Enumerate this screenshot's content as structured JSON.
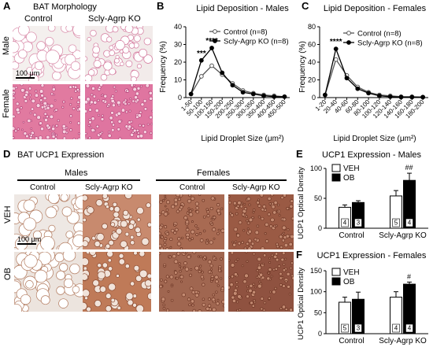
{
  "panels": {
    "A": {
      "letter": "A",
      "title": "BAT Morphology",
      "col_labels": [
        "Control",
        "Scly-Agrp KO"
      ],
      "row_labels": [
        "Male",
        "Female"
      ],
      "scale_bar": "100 μm"
    },
    "D": {
      "letter": "D",
      "title": "BAT UCP1 Expression",
      "group_labels": [
        "Males",
        "Females"
      ],
      "col_labels": [
        "Control",
        "Scly-Agrp KO",
        "Control",
        "Scly-Agrp KO"
      ],
      "row_labels": [
        "VEH",
        "OB"
      ],
      "scale_bar": "100 μm"
    }
  },
  "colors": {
    "control_line": "#555555",
    "ko_line": "#000000",
    "veh_fill": "#ffffff",
    "ob_fill": "#000000",
    "tissue_pink": "#e8a4bc",
    "tissue_brown": "#a0522d"
  },
  "chart_data": [
    {
      "id": "B",
      "letter": "B",
      "type": "line",
      "title": "Lipid Deposition - Males",
      "xlabel": "Lipid Droplet Size (μm²)",
      "ylabel": "Frequency (%)",
      "categories": [
        "1-50",
        "50-100",
        "100-150",
        "150-200",
        "200-250",
        "250-300",
        "300-350",
        "350-400",
        "400-450",
        "450-500"
      ],
      "ylim": [
        0,
        40
      ],
      "yticks": [
        0,
        10,
        20,
        30,
        40
      ],
      "series": [
        {
          "name": "Control (n=8)",
          "values": [
            2,
            12,
            18,
            13,
            8,
            4,
            2.5,
            1.5,
            1,
            0.5
          ]
        },
        {
          "name": "Scly-Agrp KO (n=8)",
          "values": [
            2,
            21,
            28,
            14,
            7,
            3,
            2,
            1,
            0.5,
            0.5
          ]
        }
      ],
      "annotations": [
        {
          "category": "50-100",
          "text": "***"
        },
        {
          "category": "100-150",
          "text": "****"
        }
      ],
      "legend": "top-right"
    },
    {
      "id": "C",
      "letter": "C",
      "type": "line",
      "title": "Lipid Deposition - Females",
      "xlabel": "Lipid Droplet Size (μm²)",
      "ylabel": "Frequency (%)",
      "categories": [
        "1-20",
        "20-40",
        "40-60",
        "60-80",
        "80-100",
        "100-120",
        "120-140",
        "140-160",
        "160-180",
        "180-200"
      ],
      "ylim": [
        0,
        80
      ],
      "yticks": [
        0,
        20,
        40,
        60,
        80
      ],
      "series": [
        {
          "name": "Control (n=8)",
          "values": [
            3,
            43,
            25,
            12,
            6,
            3,
            2,
            1,
            1,
            0.5
          ]
        },
        {
          "name": "Scly-Agrp KO (n=8)",
          "values": [
            3,
            55,
            22,
            10,
            5,
            2,
            1,
            0.5,
            0.5,
            0.5
          ]
        }
      ],
      "annotations": [
        {
          "category": "20-40",
          "text": "****"
        }
      ],
      "legend": "top-right"
    },
    {
      "id": "E",
      "letter": "E",
      "type": "bar",
      "title": "UCP1 Expression - Males",
      "ylabel": "UCP1 Optical Density",
      "categories": [
        "Control",
        "Scly-Agrp KO"
      ],
      "ylim": [
        0,
        100
      ],
      "yticks": [
        0,
        50,
        100
      ],
      "series": [
        {
          "name": "VEH",
          "values": [
            35,
            54
          ],
          "errors": [
            4,
            9
          ],
          "n": [
            "4",
            "5"
          ]
        },
        {
          "name": "OB",
          "values": [
            43,
            80
          ],
          "errors": [
            3,
            12
          ],
          "n": [
            "3",
            "4"
          ]
        }
      ],
      "annotations": [
        {
          "category": "Scly-Agrp KO",
          "text": "##"
        }
      ],
      "legend": "top-left"
    },
    {
      "id": "F",
      "letter": "F",
      "type": "bar",
      "title": "UCP1 Expression - Females",
      "ylabel": "UCP1 Optical Density",
      "categories": [
        "Control",
        "Scly-Agrp KO"
      ],
      "ylim": [
        0,
        150
      ],
      "yticks": [
        0,
        50,
        100,
        150
      ],
      "series": [
        {
          "name": "VEH",
          "values": [
            75,
            87
          ],
          "errors": [
            12,
            13
          ],
          "n": [
            "5",
            "4"
          ]
        },
        {
          "name": "OB",
          "values": [
            82,
            118
          ],
          "errors": [
            17,
            5
          ],
          "n": [
            "3",
            "4"
          ]
        }
      ],
      "annotations": [
        {
          "category": "Scly-Agrp KO",
          "text": "#"
        }
      ],
      "legend": "top-left"
    }
  ]
}
